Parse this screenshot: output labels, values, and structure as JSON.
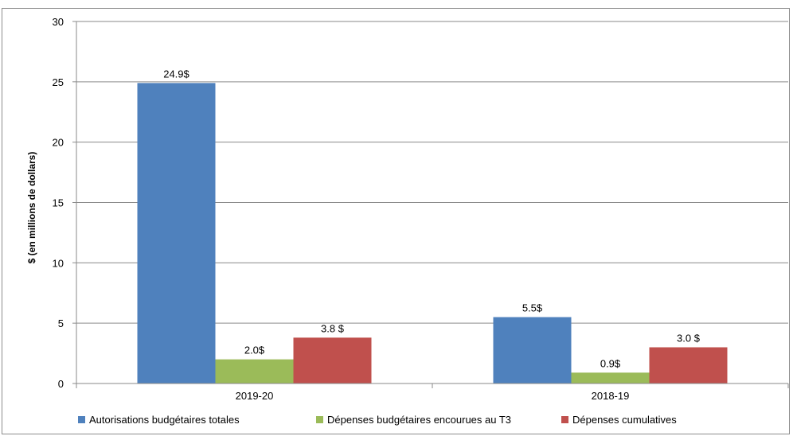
{
  "chart_data": {
    "type": "bar",
    "categories": [
      "2019-20",
      "2018-19"
    ],
    "series": [
      {
        "name": "Autorisations budgétaires totales",
        "values": [
          24.9,
          5.5
        ],
        "labels": [
          "24.9$",
          "5.5$"
        ],
        "color": "#4f81bd"
      },
      {
        "name": "Dépenses budgétaires encourues au T3",
        "values": [
          2.0,
          0.9
        ],
        "labels": [
          "2.0$",
          "0.9$"
        ],
        "color": "#9bbb59"
      },
      {
        "name": "Dépenses cumulatives",
        "values": [
          3.8,
          3.0
        ],
        "labels": [
          "3.8 $",
          "3.0 $"
        ],
        "color": "#c0504d"
      }
    ],
    "ylabel": "$ (en millions de dollars)",
    "xlabel": "",
    "ylim": [
      0,
      30
    ],
    "yticks": [
      0,
      5,
      10,
      15,
      20,
      25,
      30
    ],
    "grid": true,
    "legend_position": "bottom"
  }
}
